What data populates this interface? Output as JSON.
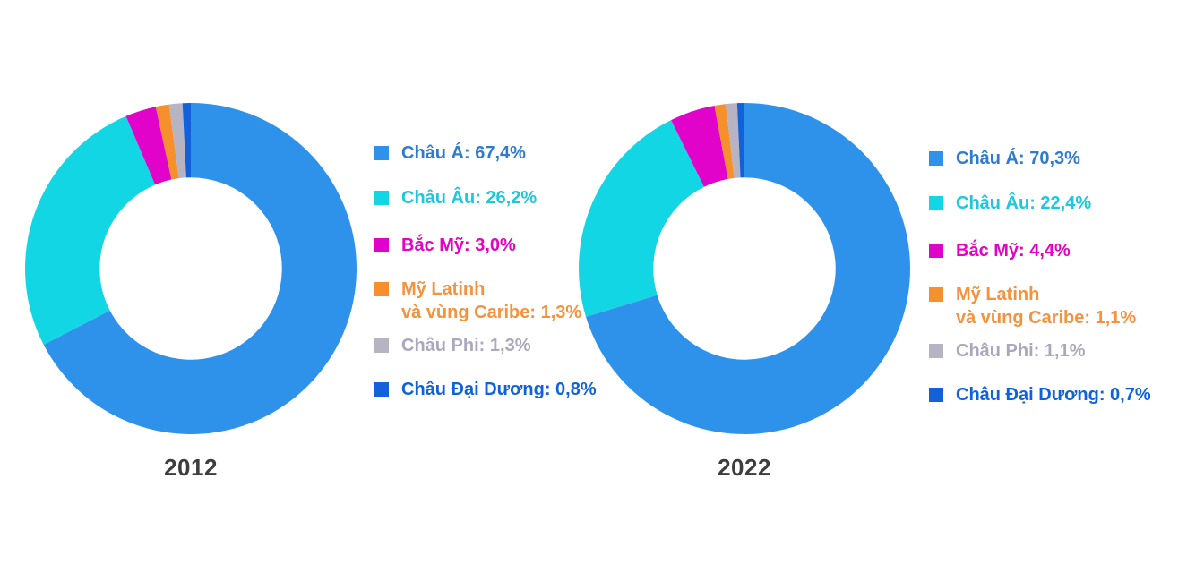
{
  "figure": {
    "background": "#ffffff",
    "year_label_color": "#3d3d3d"
  },
  "chart_data": [
    {
      "type": "pie",
      "title": "2012",
      "donut": true,
      "hole_ratio": 0.55,
      "start_angle_deg": 0,
      "direction": "clockwise",
      "legend_position": "right",
      "categories": [
        "Châu Á",
        "Châu Âu",
        "Bắc Mỹ",
        "Mỹ Latinh và vùng Caribe",
        "Châu Phi",
        "Châu Đại Dương"
      ],
      "category_slugs": [
        "chau-a",
        "chau-au",
        "bac-my",
        "my-latinh-va-vung-caribe",
        "chau-phi",
        "chau-dai-duong"
      ],
      "values": [
        67.4,
        26.2,
        3.0,
        1.3,
        1.3,
        0.8
      ],
      "colors": [
        "#2f92ea",
        "#12d6e3",
        "#e103c9",
        "#f6902d",
        "#b6b4c3",
        "#1260da"
      ],
      "legend": [
        {
          "line1": "Châu Á: 67,4%",
          "text_color": "#2e7cd2"
        },
        {
          "line1": "Châu Âu: 26,2%",
          "text_color": "#1cc8df"
        },
        {
          "line1": "Bắc Mỹ: 3,0%",
          "text_color": "#e203c4"
        },
        {
          "line1": "Mỹ Latinh",
          "line2": "và vùng Caribe: 1,3%",
          "text_color": "#f6913c"
        },
        {
          "line1": "Châu Phi: 1,3%",
          "text_color": "#a9a8bc"
        },
        {
          "line1": "Châu Đại Dương: 0,8%",
          "text_color": "#0e62da"
        }
      ]
    },
    {
      "type": "pie",
      "title": "2022",
      "donut": true,
      "hole_ratio": 0.55,
      "start_angle_deg": 0,
      "direction": "clockwise",
      "legend_position": "right",
      "categories": [
        "Châu Á",
        "Châu Âu",
        "Bắc Mỹ",
        "Mỹ Latinh và vùng Caribe",
        "Châu Phi",
        "Châu Đại Dương"
      ],
      "category_slugs": [
        "chau-a",
        "chau-au",
        "bac-my",
        "my-latinh-va-vung-caribe",
        "chau-phi",
        "chau-dai-duong"
      ],
      "values": [
        70.3,
        22.4,
        4.4,
        1.1,
        1.1,
        0.7
      ],
      "colors": [
        "#2f92ea",
        "#12d6e3",
        "#e103c9",
        "#f6902d",
        "#b6b4c3",
        "#1260da"
      ],
      "legend": [
        {
          "line1": "Châu Á: 70,3%",
          "text_color": "#2e7cd2"
        },
        {
          "line1": "Châu Âu: 22,4%",
          "text_color": "#1cc8df"
        },
        {
          "line1": "Bắc Mỹ: 4,4%",
          "text_color": "#e203c4"
        },
        {
          "line1": "Mỹ Latinh",
          "line2": "và vùng Caribe: 1,1%",
          "text_color": "#f6913c"
        },
        {
          "line1": "Châu Phi: 1,1%",
          "text_color": "#a9a8bc"
        },
        {
          "line1": "Châu Đại Dương: 0,7%",
          "text_color": "#0e62da"
        }
      ]
    }
  ]
}
